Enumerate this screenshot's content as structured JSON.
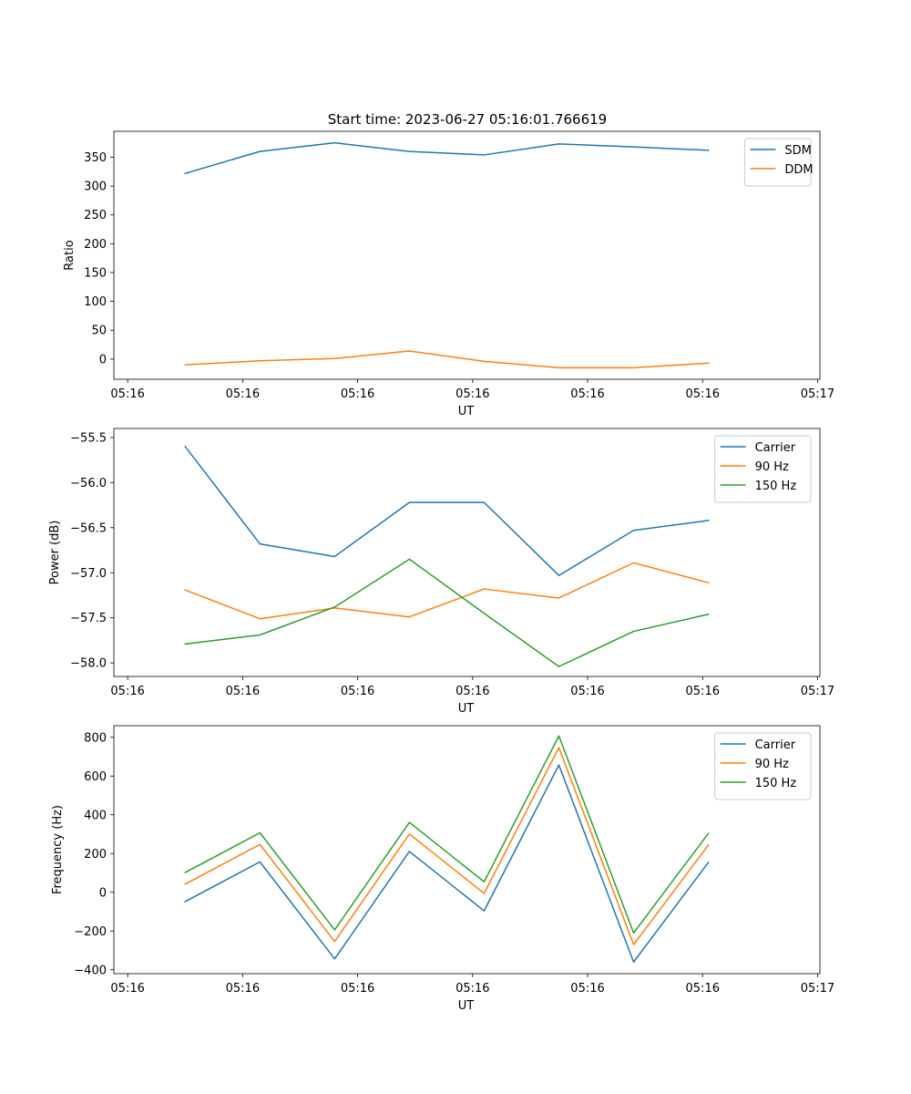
{
  "figure_title": "Start time: 2023-06-27 05:16:01.766619",
  "colors": {
    "blue": "#1f77b4",
    "orange": "#ff7f0e",
    "green": "#2ca02c"
  },
  "chart_data": [
    {
      "type": "line",
      "title": "Start time: 2023-06-27 05:16:01.766619",
      "xlabel": "UT",
      "ylabel": "Ratio",
      "x_tick_labels": [
        "05:16",
        "05:16",
        "05:16",
        "05:16",
        "05:16",
        "05:16",
        "05:17"
      ],
      "x_ticks": [
        0,
        1,
        2,
        3,
        4,
        5,
        6
      ],
      "xlim": [
        -0.12,
        6.02
      ],
      "x": [
        0.5,
        1.15,
        1.8,
        2.45,
        3.1,
        3.75,
        4.4,
        5.05
      ],
      "yticks": [
        0,
        50,
        100,
        150,
        200,
        250,
        300,
        350
      ],
      "ylim": [
        -35,
        395
      ],
      "legend_position": "upper right",
      "series": [
        {
          "name": "SDM",
          "color": "#1f77b4",
          "values": [
            322,
            360,
            375,
            360,
            354,
            373,
            368,
            362
          ]
        },
        {
          "name": "DDM",
          "color": "#ff7f0e",
          "values": [
            -10,
            -3,
            1,
            14,
            -4,
            -15,
            -15,
            -7
          ]
        }
      ]
    },
    {
      "type": "line",
      "title": "",
      "xlabel": "UT",
      "ylabel": "Power (dB)",
      "x_tick_labels": [
        "05:16",
        "05:16",
        "05:16",
        "05:16",
        "05:16",
        "05:16",
        "05:17"
      ],
      "x_ticks": [
        0,
        1,
        2,
        3,
        4,
        5,
        6
      ],
      "xlim": [
        -0.12,
        6.02
      ],
      "x": [
        0.5,
        1.15,
        1.8,
        2.45,
        3.1,
        3.75,
        4.4,
        5.05
      ],
      "yticks": [
        -55.5,
        -56.0,
        -56.5,
        -57.0,
        -57.5,
        -58.0
      ],
      "ylim": [
        -58.15,
        -55.4
      ],
      "legend_position": "upper right",
      "series": [
        {
          "name": "Carrier",
          "color": "#1f77b4",
          "values": [
            -55.6,
            -56.68,
            -56.82,
            -56.22,
            -56.22,
            -57.03,
            -56.53,
            -56.42
          ]
        },
        {
          "name": "90 Hz",
          "color": "#ff7f0e",
          "values": [
            -57.19,
            -57.51,
            -57.39,
            -57.49,
            -57.18,
            -57.28,
            -56.89,
            -57.11
          ]
        },
        {
          "name": "150 Hz",
          "color": "#2ca02c",
          "values": [
            -57.79,
            -57.69,
            -57.38,
            -56.85,
            -57.45,
            -58.04,
            -57.65,
            -57.46
          ]
        }
      ]
    },
    {
      "type": "line",
      "title": "",
      "xlabel": "UT",
      "ylabel": "Frequency (Hz)",
      "x_tick_labels": [
        "05:16",
        "05:16",
        "05:16",
        "05:16",
        "05:16",
        "05:16",
        "05:17"
      ],
      "x_ticks": [
        0,
        1,
        2,
        3,
        4,
        5,
        6
      ],
      "xlim": [
        -0.12,
        6.02
      ],
      "x": [
        0.5,
        1.15,
        1.8,
        2.45,
        3.1,
        3.75,
        4.4,
        5.05
      ],
      "yticks": [
        -400,
        -200,
        0,
        200,
        400,
        600,
        800
      ],
      "ylim": [
        -420,
        860
      ],
      "legend_position": "upper right",
      "series": [
        {
          "name": "Carrier",
          "color": "#1f77b4",
          "values": [
            -48,
            157,
            -344,
            211,
            -96,
            657,
            -360,
            154
          ]
        },
        {
          "name": "90 Hz",
          "color": "#ff7f0e",
          "values": [
            42,
            247,
            -254,
            301,
            -6,
            747,
            -270,
            244
          ]
        },
        {
          "name": "150 Hz",
          "color": "#2ca02c",
          "values": [
            102,
            307,
            -194,
            361,
            54,
            807,
            -210,
            304
          ]
        }
      ]
    }
  ]
}
